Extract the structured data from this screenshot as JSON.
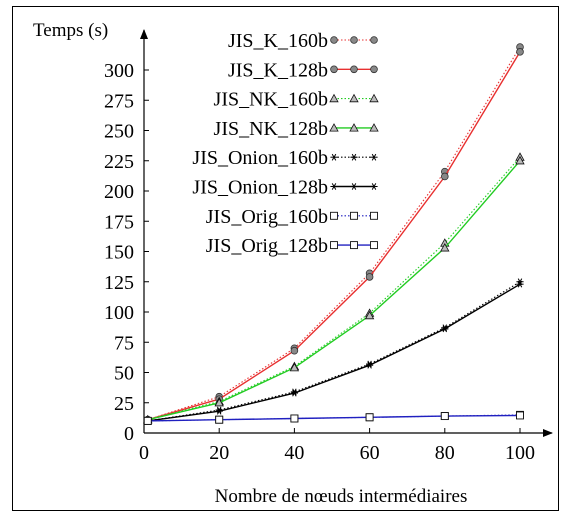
{
  "chart_data": {
    "type": "line",
    "ylabel": "Temps (s)",
    "xlabel": "Nombre de nœuds intermédiaires",
    "xlim": [
      0,
      105
    ],
    "ylim": [
      0,
      325
    ],
    "x_ticks": [
      0,
      20,
      40,
      60,
      80,
      100
    ],
    "y_ticks": [
      0,
      25,
      50,
      75,
      100,
      125,
      150,
      175,
      200,
      225,
      250,
      275,
      300
    ],
    "legend_position": "top-right",
    "grid": false,
    "series": [
      {
        "name": "JIS_K_160b",
        "color": "#e83030",
        "dash": "dotted",
        "marker": "circle-filled",
        "x": [
          1,
          20,
          40,
          60,
          80,
          100
        ],
        "y": [
          11,
          30,
          70,
          132,
          216,
          319
        ]
      },
      {
        "name": "JIS_K_128b",
        "color": "#e83030",
        "dash": "solid",
        "marker": "circle-filled",
        "x": [
          1,
          20,
          40,
          60,
          80,
          100
        ],
        "y": [
          11,
          28,
          68,
          129,
          212,
          315
        ]
      },
      {
        "name": "JIS_NK_160b",
        "color": "#22cc22",
        "dash": "dotted",
        "marker": "triangle",
        "x": [
          1,
          20,
          40,
          60,
          80,
          100
        ],
        "y": [
          11,
          26,
          55,
          99,
          157,
          228
        ]
      },
      {
        "name": "JIS_NK_128b",
        "color": "#22cc22",
        "dash": "solid",
        "marker": "triangle",
        "x": [
          1,
          20,
          40,
          60,
          80,
          100
        ],
        "y": [
          11,
          25,
          54,
          97,
          153,
          225
        ]
      },
      {
        "name": "JIS_Onion_160b",
        "color": "#000000",
        "dash": "dotted",
        "marker": "star",
        "x": [
          1,
          20,
          40,
          60,
          80,
          100
        ],
        "y": [
          10,
          19,
          34,
          57,
          87,
          125
        ]
      },
      {
        "name": "JIS_Onion_128b",
        "color": "#000000",
        "dash": "solid",
        "marker": "star",
        "x": [
          1,
          20,
          40,
          60,
          80,
          100
        ],
        "y": [
          10,
          18,
          33,
          56,
          86,
          123
        ]
      },
      {
        "name": "JIS_Orig_160b",
        "color": "#2020c0",
        "dash": "dotted",
        "marker": "square",
        "x": [
          1,
          20,
          40,
          60,
          80,
          100
        ],
        "y": [
          10,
          11,
          12,
          13,
          14,
          15
        ]
      },
      {
        "name": "JIS_Orig_128b",
        "color": "#2020c0",
        "dash": "solid",
        "marker": "square",
        "x": [
          1,
          20,
          40,
          60,
          80,
          100
        ],
        "y": [
          10,
          11,
          12,
          13,
          14,
          14.5
        ]
      }
    ]
  }
}
